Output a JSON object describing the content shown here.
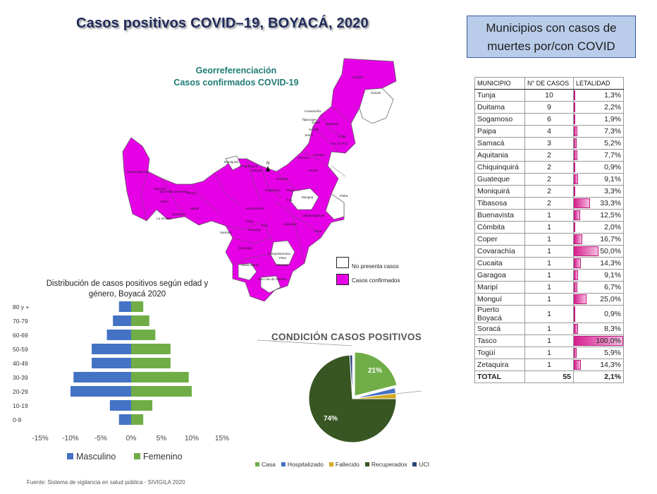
{
  "main_title": "Casos positivos COVID–19, BOYACÁ, 2020",
  "deaths_box": "Municipios con casos de muertes por/con COVID",
  "map": {
    "title_line1": "Georreferenciación",
    "title_line2": "Casos confirmados COVID-19",
    "legend_none": "No presenta casos",
    "legend_confirmed": "Casos confirmados",
    "confirmed_color": "#e600e6",
    "none_color": "#ffffff",
    "labels": [
      "Cubará",
      "Guicán",
      "Covarachía",
      "Tipacoque",
      "Soatá",
      "Socotá",
      "Jericó",
      "Sativasur",
      "Chita",
      "Paz de Río",
      "Corrales",
      "Gámeza",
      "Pesca",
      "Mongua",
      "Pisba",
      "Puerto Boyacá",
      "Otanche",
      "Muzo",
      "San Pablo de Borbur",
      "Pauna",
      "Maripí",
      "La Victoria",
      "Quípama",
      "Chiquinquirá",
      "Moniquirá",
      "Saboyá",
      "Arcabuco",
      "Tunja",
      "Samacá",
      "Toca",
      "Aquitania",
      "Labranzagrande",
      "Paya",
      "Garagoa",
      "Macanal",
      "Campohermoso",
      "Páez",
      "Guateque",
      "Santa María",
      "San Luis de Gaceno",
      "Tota",
      "Tuta",
      "Sogamoso",
      "Duitama",
      "Paipa"
    ]
  },
  "pyramid": {
    "title_line1": "Distribución de casos positivos según edad y",
    "title_line2": "género, Boyacá 2020",
    "legend_m": "Masculino",
    "legend_f": "Femenino",
    "color_m": "#4472c4",
    "color_f": "#70ad47",
    "x_ticks": [
      "-15%",
      "-10%",
      "-5%",
      "0%",
      "5%",
      "10%",
      "15%"
    ]
  },
  "pie": {
    "title": "CONDICIÓN CASOS POSITIVOS",
    "label_casa": "21%",
    "label_recuperados": "74%",
    "legend": [
      "Casa",
      "Hospitalizado",
      "Fallecido",
      "Recuperados",
      "UCI"
    ],
    "colors": [
      "#70ad47",
      "#4472c4",
      "#d4a820",
      "#375623",
      "#264478"
    ]
  },
  "table": {
    "headers": [
      "MUNICIPIO",
      "N° DE CASOS",
      "LETALIDAD"
    ],
    "rows": [
      {
        "municipio": "Tunja",
        "casos": "10",
        "letalidad": "1,3%",
        "pct": 1.3
      },
      {
        "municipio": "Duitama",
        "casos": "9",
        "letalidad": "2,2%",
        "pct": 2.2
      },
      {
        "municipio": "Sogamoso",
        "casos": "6",
        "letalidad": "1,9%",
        "pct": 1.9
      },
      {
        "municipio": "Paipa",
        "casos": "4",
        "letalidad": "7,3%",
        "pct": 7.3
      },
      {
        "municipio": "Samacá",
        "casos": "3",
        "letalidad": "5,2%",
        "pct": 5.2
      },
      {
        "municipio": "Aquitania",
        "casos": "2",
        "letalidad": "7,7%",
        "pct": 7.7
      },
      {
        "municipio": "Chiquinquirá",
        "casos": "2",
        "letalidad": "0,9%",
        "pct": 0.9
      },
      {
        "municipio": "Guateque",
        "casos": "2",
        "letalidad": "9,1%",
        "pct": 9.1
      },
      {
        "municipio": "Moniquirá",
        "casos": "2",
        "letalidad": "3,3%",
        "pct": 3.3
      },
      {
        "municipio": "Tibasosa",
        "casos": "2",
        "letalidad": "33,3%",
        "pct": 33.3
      },
      {
        "municipio": "Buenavista",
        "casos": "1",
        "letalidad": "12,5%",
        "pct": 12.5
      },
      {
        "municipio": "Cómbita",
        "casos": "1",
        "letalidad": "2,0%",
        "pct": 2.0
      },
      {
        "municipio": "Coper",
        "casos": "1",
        "letalidad": "16,7%",
        "pct": 16.7
      },
      {
        "municipio": "Covarachía",
        "casos": "1",
        "letalidad": "50,0%",
        "pct": 50.0
      },
      {
        "municipio": "Cucaita",
        "casos": "1",
        "letalidad": "14,3%",
        "pct": 14.3
      },
      {
        "municipio": "Garagoa",
        "casos": "1",
        "letalidad": "9,1%",
        "pct": 9.1
      },
      {
        "municipio": "Maripí",
        "casos": "1",
        "letalidad": "6,7%",
        "pct": 6.7
      },
      {
        "municipio": "Monguí",
        "casos": "1",
        "letalidad": "25,0%",
        "pct": 25.0
      },
      {
        "municipio": "Puerto Boyacá",
        "casos": "1",
        "letalidad": "0,9%",
        "pct": 0.9
      },
      {
        "municipio": "Soracá",
        "casos": "1",
        "letalidad": "8,3%",
        "pct": 8.3
      },
      {
        "municipio": "Tasco",
        "casos": "1",
        "letalidad": "100,0%",
        "pct": 100.0
      },
      {
        "municipio": "Togüí",
        "casos": "1",
        "letalidad": "5,9%",
        "pct": 5.9
      },
      {
        "municipio": "Zetaquira",
        "casos": "1",
        "letalidad": "14,3%",
        "pct": 14.3
      }
    ],
    "total": {
      "label": "TOTAL",
      "casos": "55",
      "letalidad": "2,1%"
    }
  },
  "source": "Fuente: Sistema de vigilancia en salud pública - SIVIGILA 2020",
  "chart_data": [
    {
      "type": "bar",
      "orientation": "horizontal",
      "title": "Distribución de casos positivos según edad y género, Boyacá 2020",
      "categories": [
        "0-9",
        "10-19",
        "20-29",
        "30-39",
        "40-49",
        "50-59",
        "60-69",
        "70-79",
        "80 y +"
      ],
      "series": [
        {
          "name": "Masculino",
          "values": [
            -2,
            -3.5,
            -10,
            -9.5,
            -6.5,
            -6.5,
            -4,
            -3,
            -2
          ]
        },
        {
          "name": "Femenino",
          "values": [
            2,
            3.5,
            10,
            9.5,
            6.5,
            6.5,
            4,
            3,
            2
          ]
        }
      ],
      "xlim": [
        -15,
        15
      ],
      "legend": "bottom"
    },
    {
      "type": "pie",
      "title": "CONDICIÓN CASOS POSITIVOS",
      "categories": [
        "Casa",
        "Hospitalizado",
        "Fallecido",
        "Recuperados",
        "UCI"
      ],
      "values": [
        21,
        2,
        2,
        74,
        1
      ],
      "legend": "bottom"
    },
    {
      "type": "table",
      "columns": [
        "MUNICIPIO",
        "N° DE CASOS",
        "LETALIDAD"
      ],
      "rows": [
        [
          "Tunja",
          10,
          1.3
        ],
        [
          "Duitama",
          9,
          2.2
        ],
        [
          "Sogamoso",
          6,
          1.9
        ],
        [
          "Paipa",
          4,
          7.3
        ],
        [
          "Samacá",
          3,
          5.2
        ],
        [
          "Aquitania",
          2,
          7.7
        ],
        [
          "Chiquinquirá",
          2,
          0.9
        ],
        [
          "Guateque",
          2,
          9.1
        ],
        [
          "Moniquirá",
          2,
          3.3
        ],
        [
          "Tibasosa",
          2,
          33.3
        ],
        [
          "Buenavista",
          1,
          12.5
        ],
        [
          "Cómbita",
          1,
          2.0
        ],
        [
          "Coper",
          1,
          16.7
        ],
        [
          "Covarachía",
          1,
          50.0
        ],
        [
          "Cucaita",
          1,
          14.3
        ],
        [
          "Garagoa",
          1,
          9.1
        ],
        [
          "Maripí",
          1,
          6.7
        ],
        [
          "Monguí",
          1,
          25.0
        ],
        [
          "Puerto Boyacá",
          1,
          0.9
        ],
        [
          "Soracá",
          1,
          8.3
        ],
        [
          "Tasco",
          1,
          100.0
        ],
        [
          "Togüí",
          1,
          5.9
        ],
        [
          "Zetaquira",
          1,
          14.3
        ]
      ],
      "total": [
        "TOTAL",
        55,
        2.1
      ]
    }
  ]
}
